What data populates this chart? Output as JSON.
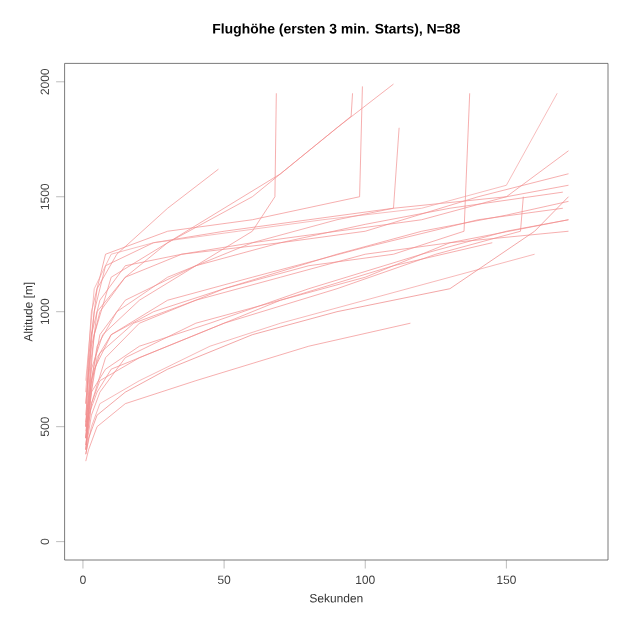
{
  "chart_data": {
    "type": "line",
    "title": "Flughöhe (ersten 3 min. Starts), N=88",
    "xlabel": "Sekunden",
    "ylabel": "Altitude [m]",
    "xlim": [
      -6.5,
      186
    ],
    "ylim": [
      -80,
      2080
    ],
    "xticks": [
      0,
      50,
      100,
      150
    ],
    "yticks": [
      0,
      500,
      1000,
      1500,
      2000
    ],
    "grid": false,
    "marker": "none",
    "line_style": "solid",
    "series": [
      {
        "color": "#f28c8c",
        "x": [
          1,
          3,
          6,
          15,
          40,
          70,
          100,
          130,
          170
        ],
        "values": [
          450,
          700,
          900,
          1050,
          1200,
          1300,
          1380,
          1450,
          1520
        ]
      },
      {
        "color": "#f28c8c",
        "x": [
          1,
          3,
          8,
          20,
          50,
          90,
          120,
          150,
          172
        ],
        "values": [
          420,
          600,
          800,
          950,
          1100,
          1250,
          1350,
          1420,
          1480
        ]
      },
      {
        "color": "#f28c8c",
        "x": [
          1,
          4,
          10,
          30,
          60,
          90,
          110
        ],
        "values": [
          500,
          900,
          1150,
          1300,
          1500,
          1800,
          1990
        ]
      },
      {
        "color": "#f49a9a",
        "x": [
          1,
          3,
          6,
          20,
          45,
          70,
          100,
          130,
          160
        ],
        "values": [
          380,
          500,
          600,
          700,
          850,
          950,
          1050,
          1150,
          1250
        ]
      },
      {
        "color": "#f28c8c",
        "x": [
          1,
          2,
          5,
          10,
          30,
          50,
          70,
          100,
          130,
          172
        ],
        "values": [
          400,
          550,
          650,
          750,
          850,
          950,
          1050,
          1150,
          1300,
          1400
        ]
      },
      {
        "color": "#f28c8c",
        "x": [
          1,
          3,
          5,
          15,
          35,
          60,
          90,
          120,
          150,
          172
        ],
        "values": [
          500,
          800,
          1000,
          1150,
          1250,
          1300,
          1350,
          1400,
          1500,
          1550
        ]
      },
      {
        "color": "#f28c8c",
        "x": [
          1,
          4,
          8,
          25,
          50,
          80,
          110,
          150,
          172
        ],
        "values": [
          600,
          1000,
          1200,
          1300,
          1350,
          1400,
          1450,
          1500,
          1700
        ]
      },
      {
        "color": "#f28c8c",
        "x": [
          1,
          3,
          7,
          20,
          40,
          60,
          68,
          68.5
        ],
        "values": [
          450,
          750,
          900,
          1050,
          1200,
          1350,
          1500,
          1950
        ]
      },
      {
        "color": "#f28c8c",
        "x": [
          1,
          3,
          6,
          15,
          30,
          50,
          70,
          90,
          95,
          95.5
        ],
        "values": [
          550,
          850,
          1000,
          1150,
          1300,
          1450,
          1600,
          1800,
          1850,
          1950
        ]
      },
      {
        "color": "#f28c8c",
        "x": [
          1,
          2,
          5,
          15,
          40,
          80,
          116
        ],
        "values": [
          350,
          400,
          500,
          600,
          700,
          850,
          950
        ]
      },
      {
        "color": "#f28c8c",
        "x": [
          1,
          3,
          5,
          10,
          25,
          50,
          80,
          110,
          135,
          137
        ],
        "values": [
          420,
          650,
          800,
          900,
          1000,
          1100,
          1200,
          1250,
          1350,
          1950
        ]
      },
      {
        "color": "#f28c8c",
        "x": [
          1,
          4,
          10,
          30,
          60,
          100,
          140,
          170
        ],
        "values": [
          480,
          750,
          900,
          1050,
          1150,
          1280,
          1400,
          1450
        ]
      },
      {
        "color": "#f28c8c",
        "x": [
          1,
          2,
          5,
          12,
          30,
          48
        ],
        "values": [
          500,
          800,
          1100,
          1250,
          1450,
          1620
        ]
      },
      {
        "color": "#f28c8c",
        "x": [
          1,
          3,
          8,
          20,
          45,
          80,
          120,
          150,
          172
        ],
        "values": [
          450,
          650,
          750,
          850,
          950,
          1100,
          1250,
          1350,
          1400
        ]
      },
      {
        "color": "#f28c8c",
        "x": [
          1,
          3,
          6,
          20,
          50,
          90,
          125,
          155,
          156
        ],
        "values": [
          400,
          600,
          700,
          800,
          950,
          1100,
          1250,
          1350,
          1500
        ]
      },
      {
        "color": "#f28c8c",
        "x": [
          1,
          3,
          6,
          15,
          35,
          70,
          100,
          140,
          172
        ],
        "values": [
          600,
          900,
          1050,
          1200,
          1250,
          1300,
          1350,
          1500,
          1600
        ]
      },
      {
        "color": "#f28c8c",
        "x": [
          1,
          3,
          6,
          18,
          40,
          70,
          100,
          130,
          172
        ],
        "values": [
          520,
          700,
          820,
          950,
          1050,
          1150,
          1250,
          1300,
          1350
        ]
      },
      {
        "color": "#f28c8c",
        "x": [
          1,
          3,
          8,
          30,
          60,
          98,
          99
        ],
        "values": [
          650,
          1000,
          1250,
          1350,
          1400,
          1500,
          1980
        ]
      },
      {
        "color": "#ee8080",
        "x": [
          1,
          2,
          5,
          15,
          30,
          60,
          90,
          130,
          160,
          172
        ],
        "values": [
          380,
          450,
          550,
          650,
          750,
          900,
          1000,
          1100,
          1350,
          1500
        ]
      },
      {
        "color": "#f4a0a0",
        "x": [
          1,
          4,
          10,
          25,
          55,
          85,
          120,
          150,
          168
        ],
        "values": [
          700,
          1100,
          1250,
          1300,
          1350,
          1400,
          1450,
          1550,
          1950
        ]
      },
      {
        "color": "#f09090",
        "x": [
          1,
          3,
          5,
          12,
          30,
          60,
          90,
          110,
          112
        ],
        "values": [
          450,
          700,
          850,
          1000,
          1150,
          1300,
          1400,
          1450,
          1800
        ]
      },
      {
        "color": "#f28c8c",
        "x": [
          1,
          3,
          6,
          15,
          40,
          70,
          110,
          145
        ],
        "values": [
          400,
          550,
          650,
          800,
          950,
          1050,
          1200,
          1300
        ]
      }
    ]
  }
}
